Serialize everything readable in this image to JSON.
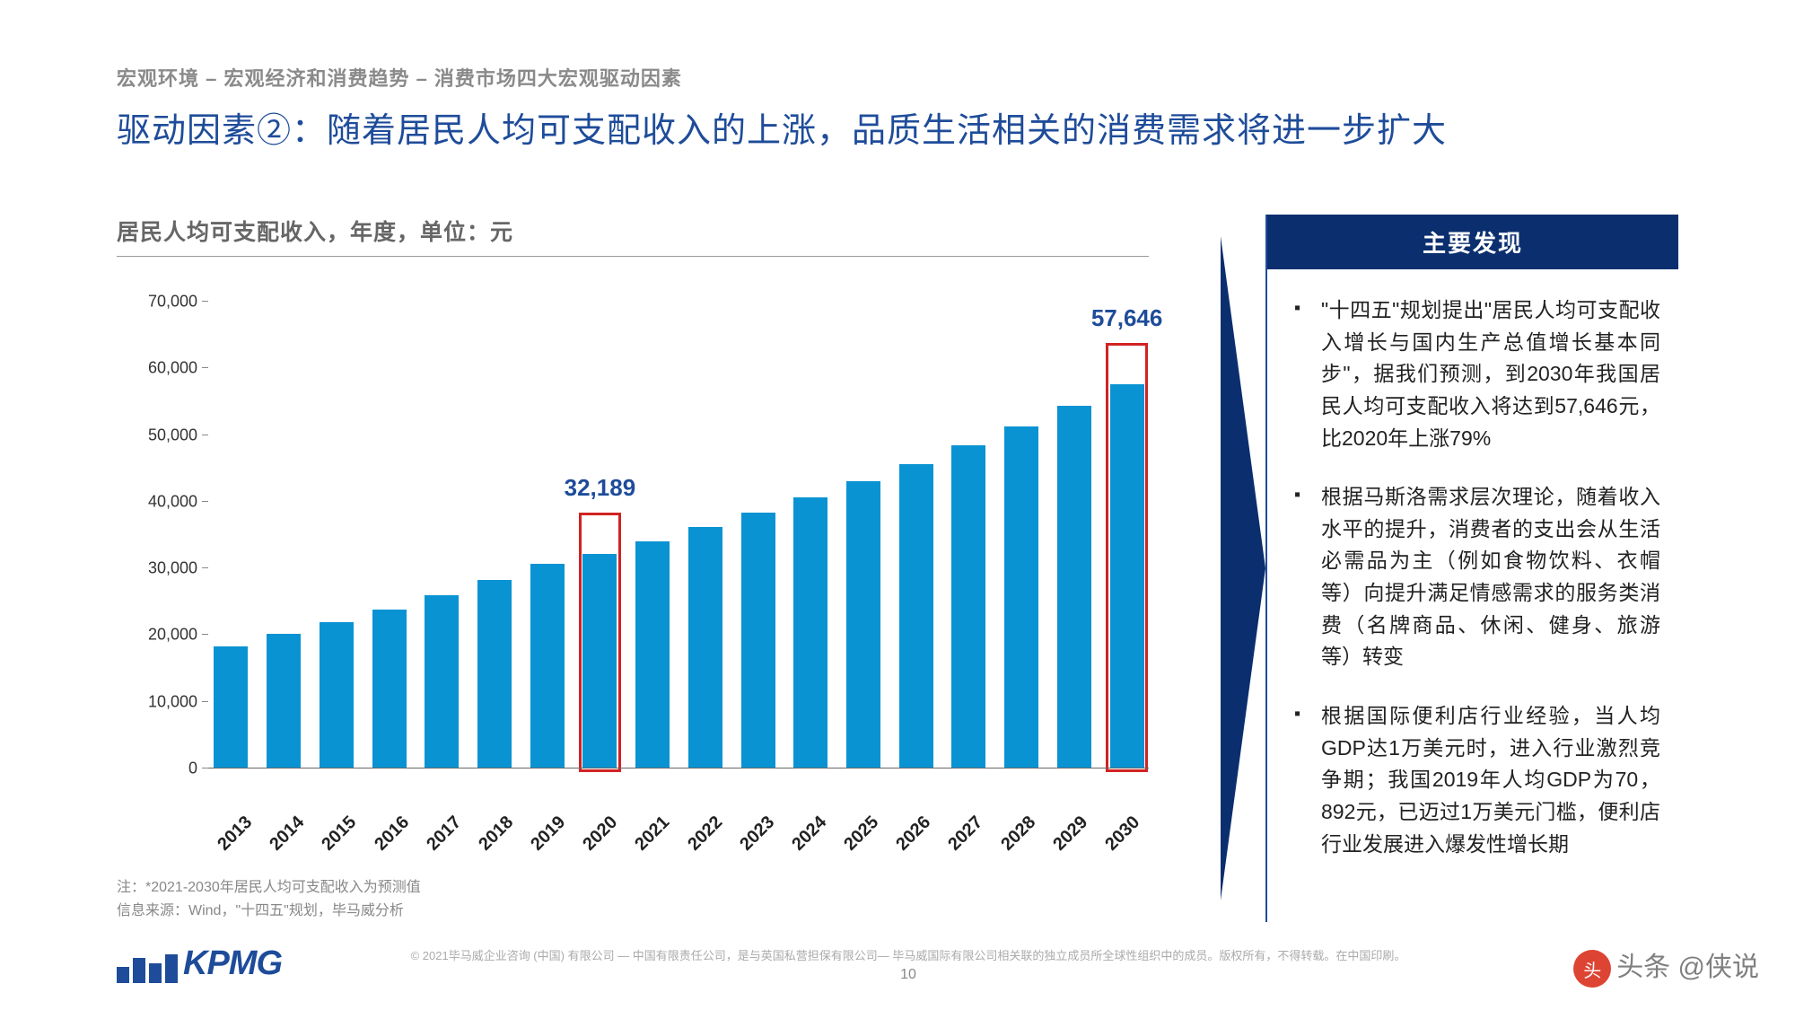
{
  "breadcrumb": "宏观环境 – 宏观经济和消费趋势 – 消费市场四大宏观驱动因素",
  "title": "驱动因素②：随着居民人均可支配收入的上涨，品质生活相关的消费需求将进一步扩大",
  "chart": {
    "title": "居民人均可支配收入，年度，单位：元",
    "type": "bar",
    "categories": [
      "2013",
      "2014",
      "2015",
      "2016",
      "2017",
      "2018",
      "2019",
      "2020",
      "2021",
      "2022",
      "2023",
      "2024",
      "2025",
      "2026",
      "2027",
      "2028",
      "2029",
      "2030"
    ],
    "values": [
      18311,
      20167,
      21966,
      23821,
      25974,
      28228,
      30733,
      32189,
      34100,
      36200,
      38400,
      40700,
      43100,
      45700,
      48400,
      51300,
      54400,
      57646
    ],
    "bar_color": "#0993d3",
    "ylim": [
      0,
      70000
    ],
    "ytick_step": 10000,
    "yticks": [
      "0",
      "10,000",
      "20,000",
      "30,000",
      "40,000",
      "50,000",
      "60,000",
      "70,000"
    ],
    "highlights": [
      {
        "index": 7,
        "label": "32,189"
      },
      {
        "index": 17,
        "label": "57,646"
      }
    ],
    "highlight_border_color": "#d22222",
    "background_color": "#ffffff",
    "axis_color": "#666666",
    "label_color": "#222222",
    "value_label_color": "#1e4c9a",
    "value_label_fontsize": 26,
    "x_label_fontsize": 20,
    "y_label_fontsize": 18,
    "bar_width": 0.78
  },
  "notes": {
    "line1": "注：*2021-2030年居民人均可支配收入为预测值",
    "line2": "信息来源：Wind，\"十四五\"规划，毕马威分析"
  },
  "findings": {
    "header": "主要发现",
    "items": [
      "\"十四五\"规划提出\"居民人均可支配收入增长与国内生产总值增长基本同步\"，据我们预测，到2030年我国居民人均可支配收入将达到57,646元，比2020年上涨79%",
      "根据马斯洛需求层次理论，随着收入水平的提升，消费者的支出会从生活必需品为主（例如食物饮料、衣帽等）向提升满足情感需求的服务类消费（名牌商品、休闲、健身、旅游等）转变",
      "根据国际便利店行业经验，当人均GDP达1万美元时，进入行业激烈竞争期；我国2019年人均GDP为70，892元，已迈过1万美元门槛，便利店行业发展进入爆发性增长期"
    ]
  },
  "footer": {
    "logo_text": "KPMG",
    "logo_color": "#1e4c9a",
    "copyright": "© 2021毕马威企业咨询 (中国) 有限公司 — 中国有限责任公司，是与英国私营担保有限公司— 毕马威国际有限公司相关联的独立成员所全球性组织中的成员。版权所有，不得转载。在中国印刷。",
    "page_number": "10"
  },
  "watermark": {
    "prefix": "头条",
    "text": "@侠说"
  },
  "colors": {
    "title_color": "#1e4c9a",
    "breadcrumb_color": "#8a8a8a",
    "findings_header_bg": "#0b2e6e",
    "findings_border": "#1e4c9a",
    "arrow_color": "#0b2e6e"
  }
}
